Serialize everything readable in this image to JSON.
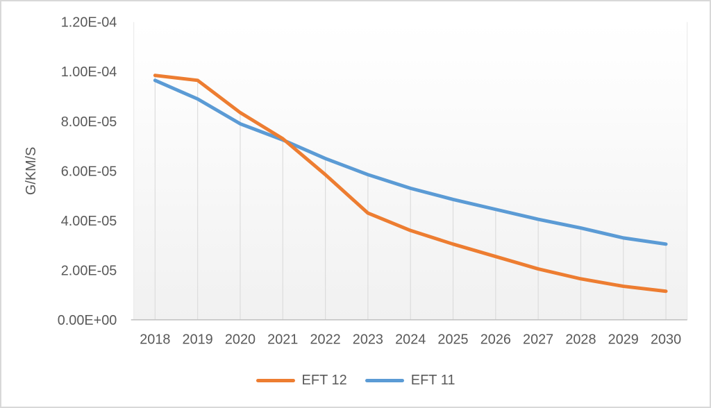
{
  "chart_data": {
    "type": "line",
    "title": "",
    "xlabel": "",
    "ylabel": "G/KM/S",
    "x": [
      "2018",
      "2019",
      "2020",
      "2021",
      "2022",
      "2023",
      "2024",
      "2025",
      "2026",
      "2027",
      "2028",
      "2029",
      "2030"
    ],
    "series": [
      {
        "name": "EFT 12",
        "color": "#ED7D31",
        "values": [
          9.85e-05,
          9.65e-05,
          8.35e-05,
          7.3e-05,
          5.85e-05,
          4.3e-05,
          3.6e-05,
          3.05e-05,
          2.55e-05,
          2.05e-05,
          1.65e-05,
          1.35e-05,
          1.15e-05
        ]
      },
      {
        "name": "EFT 11",
        "color": "#5B9BD5",
        "values": [
          9.65e-05,
          8.9e-05,
          7.9e-05,
          7.25e-05,
          6.5e-05,
          5.85e-05,
          5.3e-05,
          4.85e-05,
          4.45e-05,
          4.05e-05,
          3.7e-05,
          3.3e-05,
          3.05e-05
        ]
      }
    ],
    "ylim": [
      0,
      0.00012
    ],
    "y_tick_labels": [
      "0.00E+00",
      "2.00E-05",
      "4.00E-05",
      "6.00E-05",
      "8.00E-05",
      "1.00E-04",
      "1.20E-04"
    ],
    "grid": "vertical drop lines from data points to x-axis, no horizontal gridlines",
    "legend_position": "bottom-center",
    "colors": {
      "text": "#595959",
      "axis_line": "#BFBFBF",
      "drop_line": "#DCDCDC",
      "plot_fill_top": "#FFFFFF",
      "plot_fill_bottom": "#F1F1F1",
      "frame_border": "#D8D8D8"
    }
  }
}
